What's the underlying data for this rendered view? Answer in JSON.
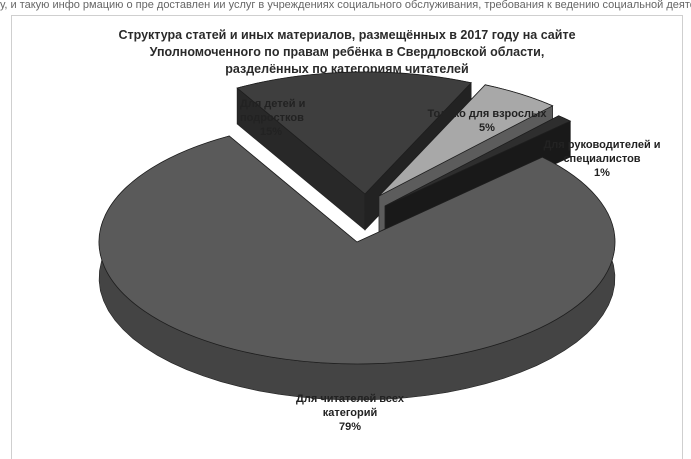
{
  "top_strip_text": "у, и такую инфо рмацию о пре доставлен ии услуг в учреждениях социального обслуживания, требования к ведению социальной деятельности",
  "chart_data": {
    "type": "pie",
    "title_lines": [
      "Структура  статей и иных материалов, размещённых в 2017 году на сайте",
      "Уполномоченного  по правам ребёнка в Свердловской области,",
      "разделённых по категориям читателей"
    ],
    "slices": [
      {
        "label_lines": [
          "Для читателей всех",
          "категорий"
        ],
        "value": 79,
        "value_label": "79%",
        "color": "#5a5a5a"
      },
      {
        "label_lines": [
          "Для детей и",
          "подростков"
        ],
        "value": 15,
        "value_label": "15%",
        "color": "#3e3e3e"
      },
      {
        "label_lines": [
          "Только для взрослых"
        ],
        "value": 5,
        "value_label": "5%",
        "color": "#a8a8a8"
      },
      {
        "label_lines": [
          "Для руководителей и",
          "специалистов"
        ],
        "value": 1,
        "value_label": "1%",
        "color": "#2e2e2e"
      }
    ],
    "style": "3d-exploded-pie",
    "grayscale": true
  }
}
